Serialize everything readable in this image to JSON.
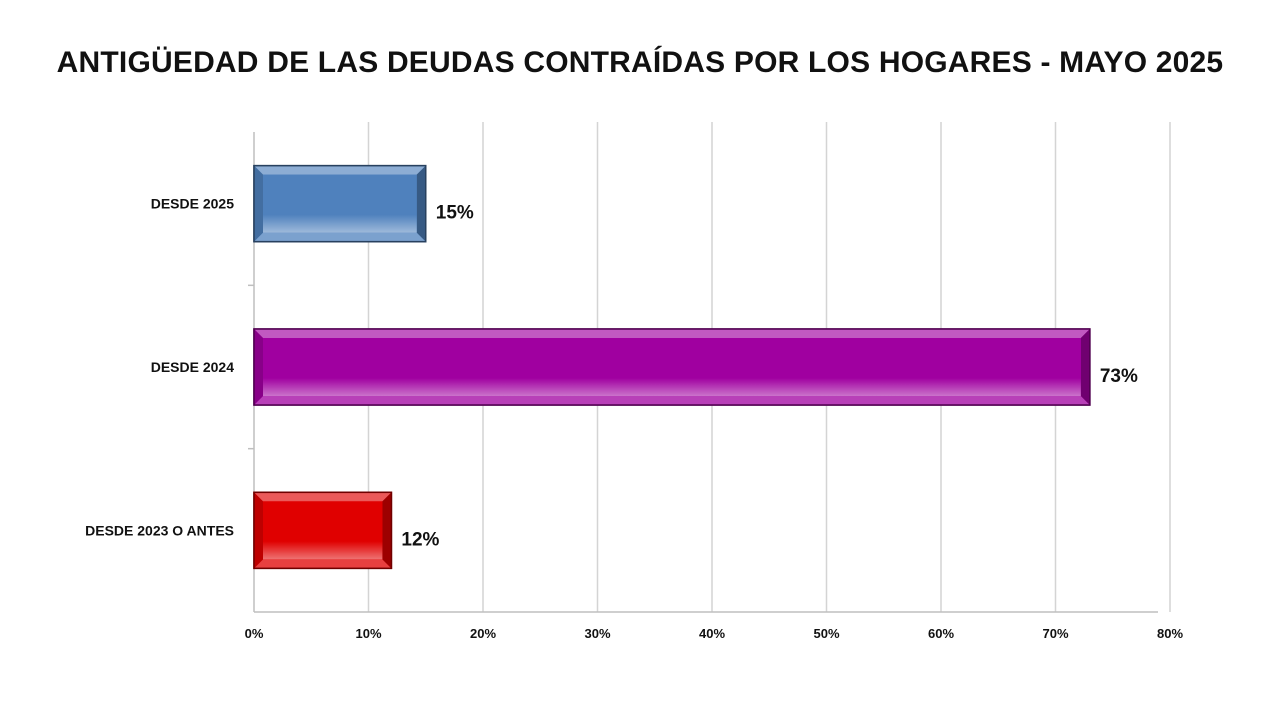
{
  "chart_data": {
    "type": "bar",
    "orientation": "horizontal",
    "title": "ANTIGÜEDAD DE LAS DEUDAS CONTRAÍDAS POR LOS HOGARES - MAYO 2025",
    "categories": [
      "DESDE 2025",
      "DESDE 2024",
      "DESDE 2023 O ANTES"
    ],
    "values": [
      15,
      73,
      12
    ],
    "data_labels": [
      "15%",
      "73%",
      "12%"
    ],
    "xlim": [
      0,
      80
    ],
    "x_ticks": [
      0,
      10,
      20,
      30,
      40,
      50,
      60,
      70,
      80
    ],
    "x_tick_labels": [
      "0%",
      "10%",
      "20%",
      "30%",
      "40%",
      "50%",
      "60%",
      "70%",
      "80%"
    ],
    "grid": true,
    "legend": "none",
    "colors": [
      "#4f81bd",
      "#a000a0",
      "#e00000"
    ]
  }
}
